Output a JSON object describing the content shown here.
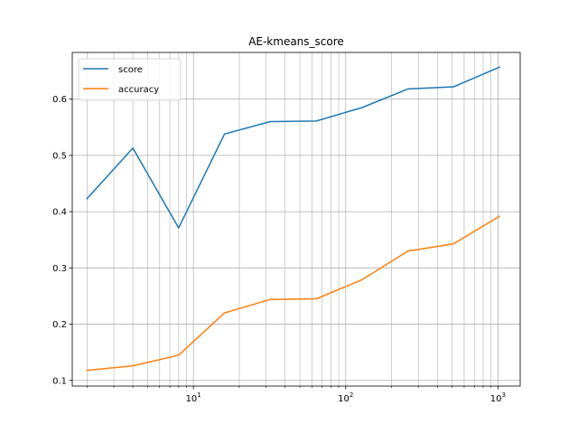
{
  "chart_data": {
    "type": "line",
    "title": "AE-kmeans_score",
    "xlabel": "",
    "ylabel": "",
    "xscale": "log",
    "xlim": [
      1.6,
      1400
    ],
    "ylim": [
      0.09,
      0.683
    ],
    "grid": "both-major-minor",
    "x": [
      2,
      4,
      8,
      16,
      32,
      64,
      128,
      256,
      512,
      1024
    ],
    "series": [
      {
        "name": "score",
        "color": "#1f77b4",
        "values": [
          0.423,
          0.513,
          0.371,
          0.538,
          0.56,
          0.561,
          0.585,
          0.618,
          0.622,
          0.657
        ]
      },
      {
        "name": "accuracy",
        "color": "#ff7f0e",
        "values": [
          0.118,
          0.126,
          0.145,
          0.22,
          0.244,
          0.245,
          0.279,
          0.33,
          0.343,
          0.392
        ]
      }
    ],
    "x_ticks": [
      {
        "value": 10,
        "base": "10",
        "exp": "1"
      },
      {
        "value": 100,
        "base": "10",
        "exp": "2"
      },
      {
        "value": 1000,
        "base": "10",
        "exp": "3"
      }
    ],
    "y_ticks": [
      {
        "value": 0.1,
        "label": "0.1"
      },
      {
        "value": 0.2,
        "label": "0.2"
      },
      {
        "value": 0.3,
        "label": "0.3"
      },
      {
        "value": 0.4,
        "label": "0.4"
      },
      {
        "value": 0.5,
        "label": "0.5"
      },
      {
        "value": 0.6,
        "label": "0.6"
      }
    ],
    "legend": {
      "position": "top-left",
      "entries": [
        "score",
        "accuracy"
      ]
    }
  }
}
